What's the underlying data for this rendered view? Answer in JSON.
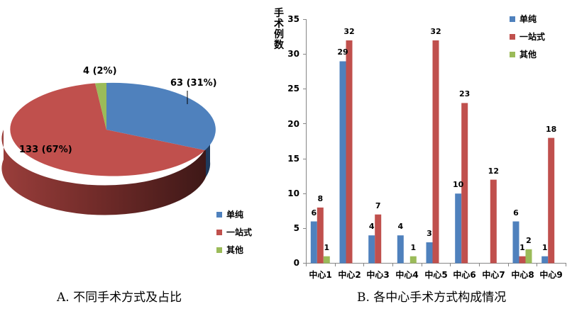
{
  "chart_data": [
    {
      "type": "pie",
      "title": "A. 不同手术方式及占比",
      "style": "3d",
      "categories": [
        "单纯",
        "一站式",
        "其他"
      ],
      "values": [
        63,
        133,
        4
      ],
      "percentages": [
        31,
        67,
        2
      ],
      "data_labels": [
        "63 (31%)",
        "133 (67%)",
        "4 (2%)"
      ],
      "colors": [
        "#4F81BD",
        "#C0504D",
        "#9BBB59"
      ],
      "legend": [
        "单纯",
        "一站式",
        "其他"
      ],
      "legend_position": "right-bottom"
    },
    {
      "type": "bar",
      "title": "B. 各中心手术方式构成情况",
      "xlabel": "",
      "ylabel": "手术例数",
      "ylim": [
        0,
        35
      ],
      "yticks": [
        0,
        5,
        10,
        15,
        20,
        25,
        30,
        35
      ],
      "categories": [
        "中心1",
        "中心2",
        "中心3",
        "中心4",
        "中心5",
        "中心6",
        "中心7",
        "中心8",
        "中心9"
      ],
      "series": [
        {
          "name": "单纯",
          "color": "#4F81BD",
          "values": [
            6,
            29,
            4,
            4,
            3,
            10,
            0,
            6,
            1
          ]
        },
        {
          "name": "一站式",
          "color": "#C0504D",
          "values": [
            8,
            32,
            7,
            0,
            32,
            23,
            12,
            1,
            18
          ]
        },
        {
          "name": "其他",
          "color": "#9BBB59",
          "values": [
            1,
            0,
            0,
            1,
            0,
            0,
            0,
            2,
            0
          ]
        }
      ],
      "grid": false,
      "legend_position": "top-right"
    }
  ],
  "pie": {
    "labels": {
      "blue": "63 (31%)",
      "red": "133 (67%)",
      "green": "4 (2%)"
    },
    "legend": [
      {
        "label": "单纯",
        "color": "#4F81BD"
      },
      {
        "label": "一站式",
        "color": "#C0504D"
      },
      {
        "label": "其他",
        "color": "#9BBB59"
      }
    ],
    "caption": "A. 不同手术方式及占比"
  },
  "bar": {
    "ylabel": [
      "手",
      "术",
      "例",
      "数"
    ],
    "yticks": [
      "35",
      "30",
      "25",
      "20",
      "15",
      "10",
      "5",
      "0"
    ],
    "legend": [
      {
        "label": "单纯",
        "color": "#4F81BD"
      },
      {
        "label": "一站式",
        "color": "#C0504D"
      },
      {
        "label": "其他",
        "color": "#9BBB59"
      }
    ],
    "caption": "B. 各中心手术方式构成情况"
  }
}
